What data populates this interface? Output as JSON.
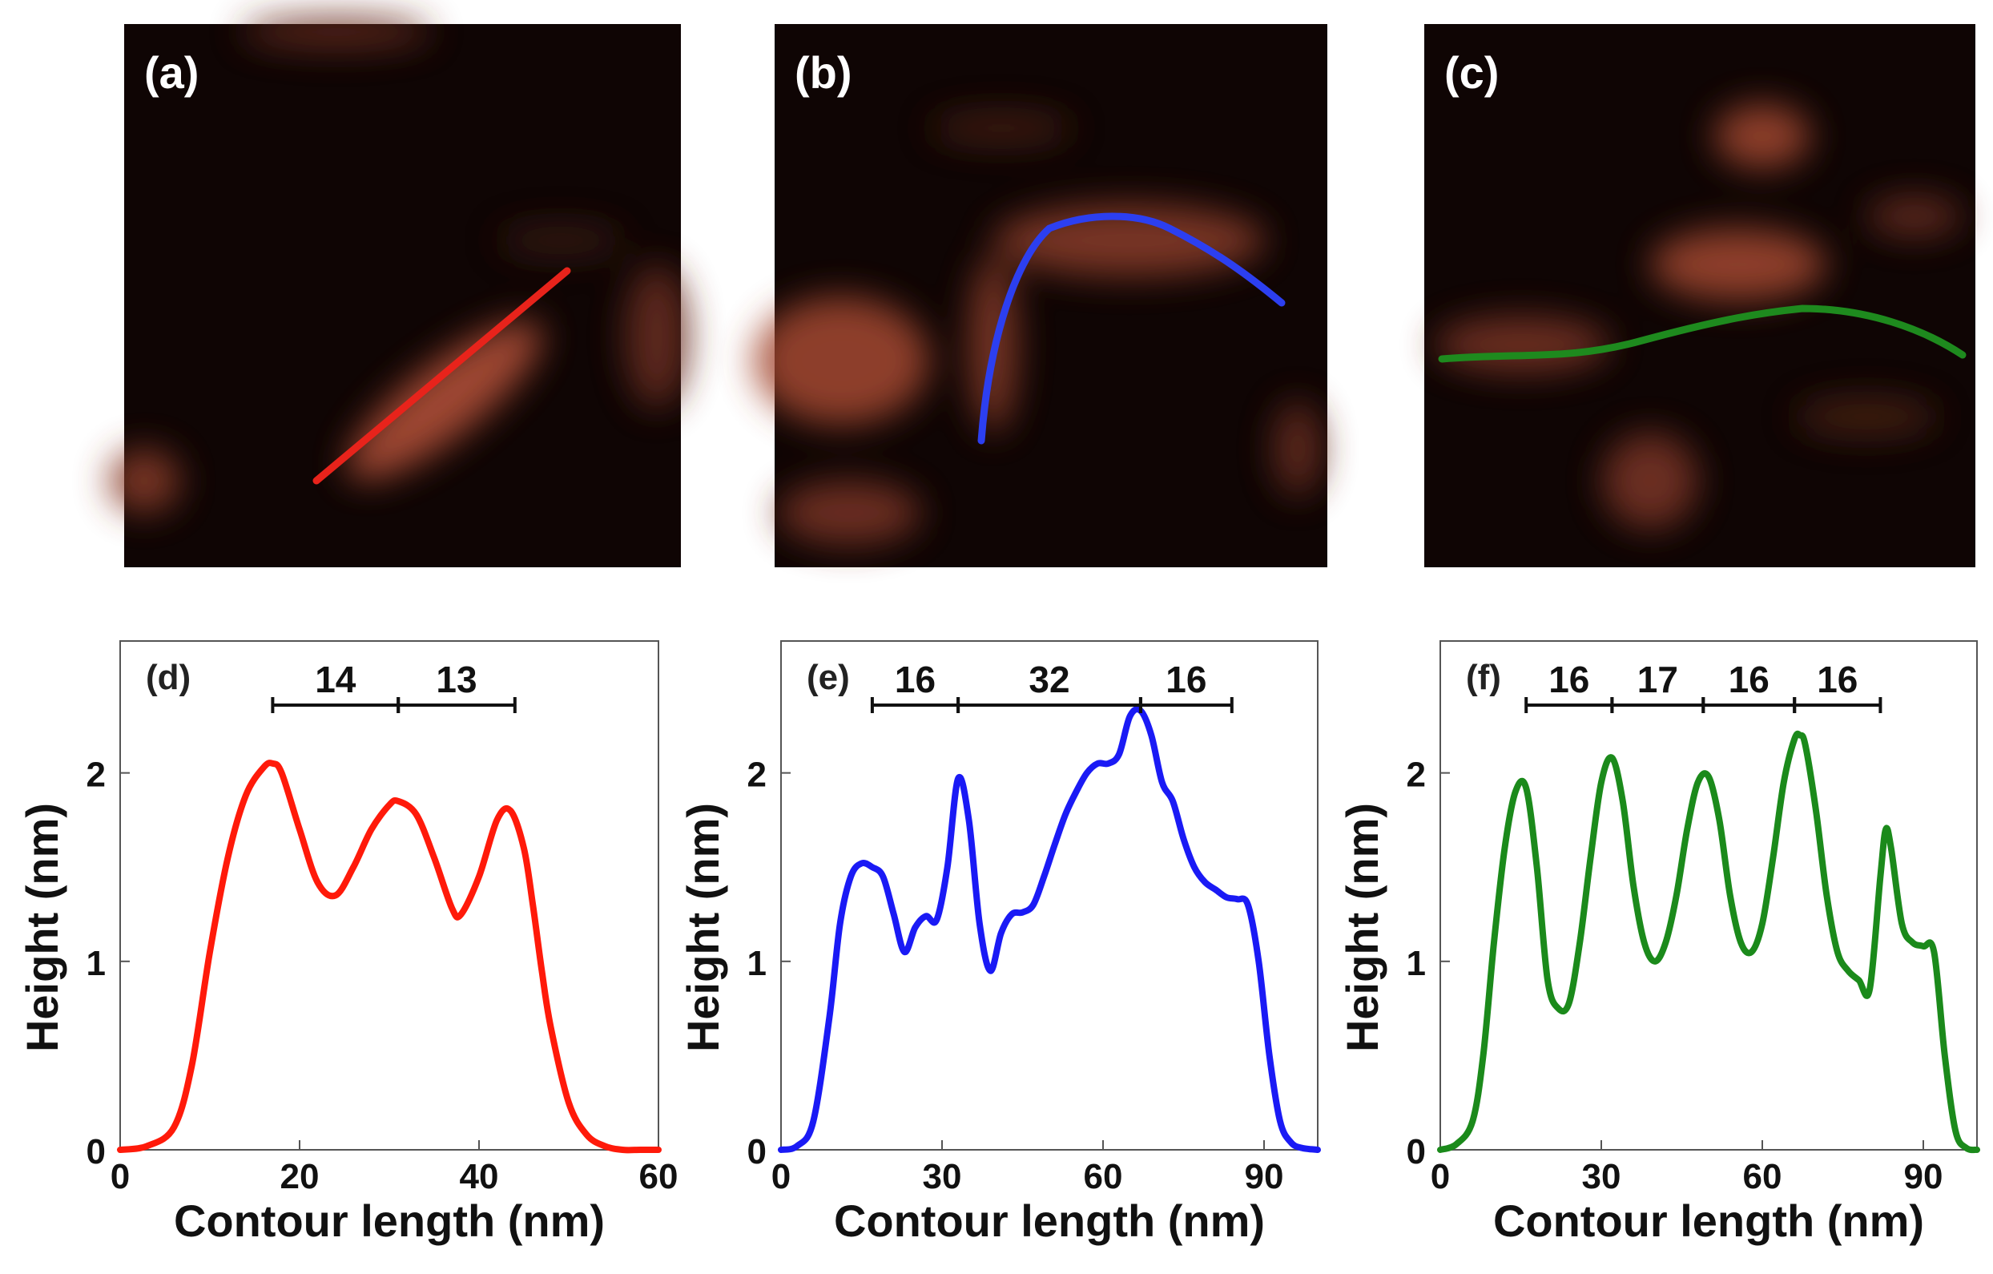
{
  "image_panels": [
    {
      "label": "(a)",
      "trace_color": "#e8231b"
    },
    {
      "label": "(b)",
      "trace_color": "#2c3ff0"
    },
    {
      "label": "(c)",
      "trace_color": "#1e8a1e"
    }
  ],
  "chart_data": [
    {
      "type": "line",
      "panel_label": "(d)",
      "color": "#ff1a0a",
      "xlabel": "Contour length (nm)",
      "ylabel": "Height  (nm)",
      "xlim": [
        0,
        60
      ],
      "ylim": [
        0,
        2.7
      ],
      "xticks": [
        0,
        20,
        40,
        60
      ],
      "yticks": [
        0,
        1,
        2
      ],
      "x": [
        0,
        3,
        6,
        8,
        10,
        12,
        14,
        16,
        17,
        18,
        20,
        22,
        24,
        26,
        28,
        30,
        31,
        33,
        35,
        37,
        38,
        40,
        42,
        43.5,
        45,
        46,
        47,
        48,
        50,
        52,
        54,
        56,
        58,
        60
      ],
      "y": [
        0,
        0.02,
        0.12,
        0.45,
        1.05,
        1.55,
        1.88,
        2.03,
        2.05,
        2.0,
        1.7,
        1.42,
        1.35,
        1.5,
        1.7,
        1.83,
        1.85,
        1.78,
        1.55,
        1.28,
        1.25,
        1.45,
        1.75,
        1.8,
        1.6,
        1.3,
        0.95,
        0.65,
        0.25,
        0.08,
        0.02,
        0.0,
        0.0,
        0.0
      ],
      "segments": [
        {
          "x0": 17,
          "x1": 31,
          "label": "14"
        },
        {
          "x0": 31,
          "x1": 44,
          "label": "13"
        }
      ]
    },
    {
      "type": "line",
      "panel_label": "(e)",
      "color": "#1a1af5",
      "xlabel": "Contour length (nm)",
      "ylabel": "Height  (nm)",
      "xlim": [
        0,
        100
      ],
      "ylim": [
        0,
        2.7
      ],
      "xticks": [
        0,
        30,
        60,
        90
      ],
      "yticks": [
        0,
        1,
        2
      ],
      "x": [
        0,
        3,
        6,
        9,
        11,
        13,
        15,
        17,
        19,
        21,
        23,
        25,
        27,
        29,
        31,
        33,
        35,
        37,
        39,
        41,
        43,
        45,
        47,
        49,
        51,
        53,
        55,
        57,
        59,
        61,
        63,
        65,
        67,
        69,
        71,
        73,
        75,
        77,
        79,
        81,
        83,
        85,
        87,
        89,
        91,
        93,
        95,
        97,
        100
      ],
      "y": [
        0,
        0.02,
        0.15,
        0.7,
        1.2,
        1.45,
        1.52,
        1.5,
        1.45,
        1.25,
        1.05,
        1.18,
        1.24,
        1.22,
        1.5,
        1.97,
        1.75,
        1.2,
        0.95,
        1.15,
        1.25,
        1.26,
        1.3,
        1.45,
        1.62,
        1.78,
        1.9,
        2.0,
        2.05,
        2.05,
        2.1,
        2.3,
        2.33,
        2.2,
        1.95,
        1.85,
        1.65,
        1.5,
        1.42,
        1.38,
        1.34,
        1.33,
        1.3,
        1.0,
        0.5,
        0.15,
        0.04,
        0.01,
        0.0
      ],
      "segments": [
        {
          "x0": 17,
          "x1": 33,
          "label": "16"
        },
        {
          "x0": 33,
          "x1": 67,
          "label": "32"
        },
        {
          "x0": 67,
          "x1": 84,
          "label": "16"
        }
      ]
    },
    {
      "type": "line",
      "panel_label": "(f)",
      "color": "#1b8a1b",
      "xlabel": "Contour length (nm)",
      "ylabel": "Height  (nm)",
      "xlim": [
        0,
        100
      ],
      "ylim": [
        0,
        2.7
      ],
      "xticks": [
        0,
        30,
        60,
        90
      ],
      "yticks": [
        0,
        1,
        2
      ],
      "x": [
        0,
        3,
        6,
        8,
        10,
        12,
        14,
        16,
        18,
        20,
        22,
        24,
        26,
        28,
        30,
        32,
        34,
        36,
        38,
        40,
        42,
        44,
        46,
        48,
        50,
        52,
        54,
        56,
        58,
        60,
        62,
        64,
        66,
        67,
        68,
        70,
        72,
        74,
        76,
        78,
        80,
        82,
        83,
        84,
        86,
        88,
        90,
        92,
        94,
        96,
        98,
        100
      ],
      "y": [
        0,
        0.03,
        0.15,
        0.5,
        1.1,
        1.6,
        1.9,
        1.92,
        1.5,
        0.9,
        0.75,
        0.78,
        1.1,
        1.55,
        1.95,
        2.08,
        1.85,
        1.4,
        1.1,
        1.0,
        1.1,
        1.35,
        1.7,
        1.95,
        1.98,
        1.75,
        1.35,
        1.1,
        1.05,
        1.2,
        1.55,
        1.95,
        2.18,
        2.2,
        2.15,
        1.8,
        1.35,
        1.05,
        0.95,
        0.9,
        0.85,
        1.45,
        1.7,
        1.6,
        1.2,
        1.1,
        1.08,
        1.05,
        0.5,
        0.1,
        0.01,
        0.0
      ],
      "segments": [
        {
          "x0": 16,
          "x1": 32,
          "label": "16"
        },
        {
          "x0": 32,
          "x1": 49,
          "label": "17"
        },
        {
          "x0": 49,
          "x1": 66,
          "label": "16"
        },
        {
          "x0": 66,
          "x1": 82,
          "label": "16"
        }
      ]
    }
  ]
}
